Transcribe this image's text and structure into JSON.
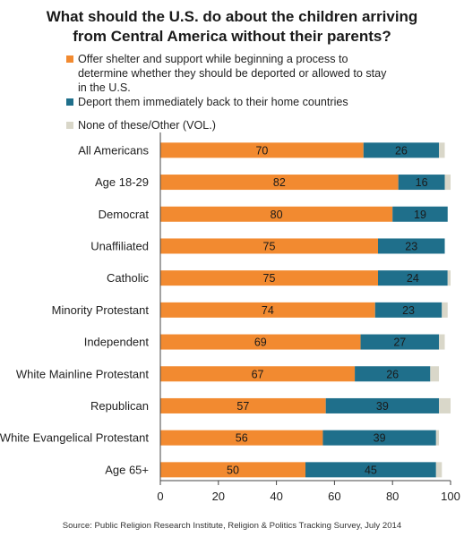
{
  "chart_data": {
    "type": "bar",
    "orientation": "horizontal",
    "stacked": true,
    "title": "What should the U.S. do about the children arriving from Central America without their parents?",
    "categories": [
      "All Americans",
      "Age 18-29",
      "Democrat",
      "Unaffiliated",
      "Catholic",
      "Minority Protestant",
      "Independent",
      "White Mainline Protestant",
      "Republican",
      "White Evangelical Protestant",
      "Age 65+"
    ],
    "series": [
      {
        "name": "Offer shelter and support while beginning a process to determine whether they should be deported or allowed to stay in the U.S.",
        "color": "#f28a30",
        "values": [
          70,
          82,
          80,
          75,
          75,
          74,
          69,
          67,
          57,
          56,
          50
        ]
      },
      {
        "name": "Deport them immediately back to their home countries",
        "color": "#1f6f8b",
        "values": [
          26,
          16,
          19,
          23,
          24,
          23,
          27,
          26,
          39,
          39,
          45
        ]
      },
      {
        "name": "None of these/Other (VOL.)",
        "color": "#d9d7c9",
        "values": [
          2,
          2,
          0,
          0,
          1,
          2,
          2,
          3,
          4,
          1,
          2
        ]
      }
    ],
    "xlim": [
      0,
      100
    ],
    "xticks": [
      0,
      20,
      40,
      60,
      80,
      100
    ],
    "grid": false,
    "legend_position": "top",
    "source": "Source: Public Religion Research Institute, Religion & Politics Tracking Survey, July 2014"
  }
}
